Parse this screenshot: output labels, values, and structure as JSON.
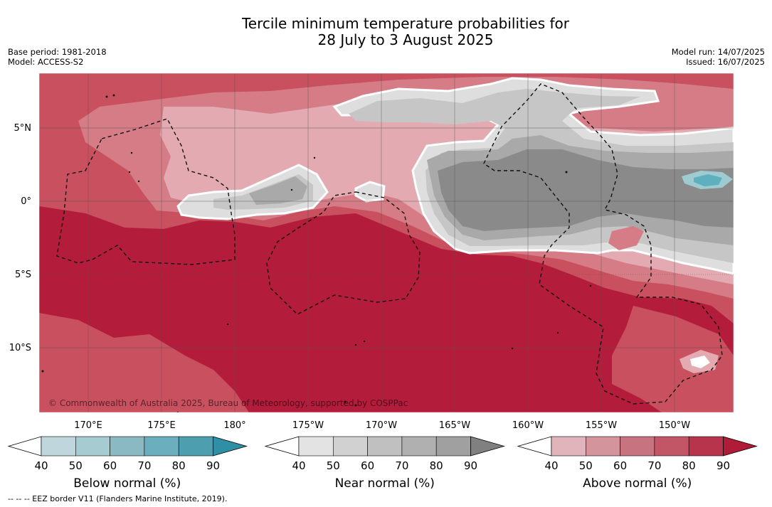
{
  "title": {
    "line1": "Tercile minimum temperature probabilities for",
    "line2": "28 July to 3 August 2025"
  },
  "meta_left": {
    "base_period": "Base period: 1981-2018",
    "model": "Model: ACCESS-S2"
  },
  "meta_right": {
    "model_run": "Model run: 14/07/2025",
    "issued": "Issued: 16/07/2025"
  },
  "map": {
    "lat_labels": [
      "5°N",
      "0°",
      "5°S",
      "10°S"
    ],
    "lon_labels": [
      "170°E",
      "175°E",
      "180°",
      "175°W",
      "170°W",
      "165°W",
      "160°W",
      "155°W",
      "150°W"
    ],
    "copyright": "© Commonwealth of Australia 2025, Bureau of Meteorology, supported by COSPPac",
    "colors": {
      "above_70": "#b31c3a",
      "above_60": "#c8505f",
      "above_50": "#d57c86",
      "above_40": "#e3abb1",
      "near_40": "#dedede",
      "near_50": "#c6c6c6",
      "near_60": "#a9a9a9",
      "near_70": "#8a8a8a",
      "below_50": "#9ecbd1",
      "below_60": "#5fb0bf"
    }
  },
  "colorbars": [
    {
      "title": "Below normal (%)",
      "ticks": [
        "40",
        "50",
        "60",
        "70",
        "80",
        "90"
      ],
      "colors": [
        "#bed6dc",
        "#a6cbd1",
        "#8ab9c3",
        "#6baebd",
        "#4d9fb0",
        "#2f90a5"
      ]
    },
    {
      "title": "Near normal (%)",
      "ticks": [
        "40",
        "50",
        "60",
        "70",
        "80",
        "90"
      ],
      "colors": [
        "#e3e3e3",
        "#d1d1d1",
        "#c0c0c0",
        "#b0b0b0",
        "#a0a0a0",
        "#808080"
      ]
    },
    {
      "title": "Above normal (%)",
      "ticks": [
        "40",
        "50",
        "60",
        "70",
        "80",
        "90"
      ],
      "colors": [
        "#e0b4ba",
        "#d4949c",
        "#c87480",
        "#c25666",
        "#b8344c",
        "#b01c37"
      ]
    }
  ],
  "footnote": "--  --  -- EEZ border V11 (Flanders Marine Institute, 2019)."
}
